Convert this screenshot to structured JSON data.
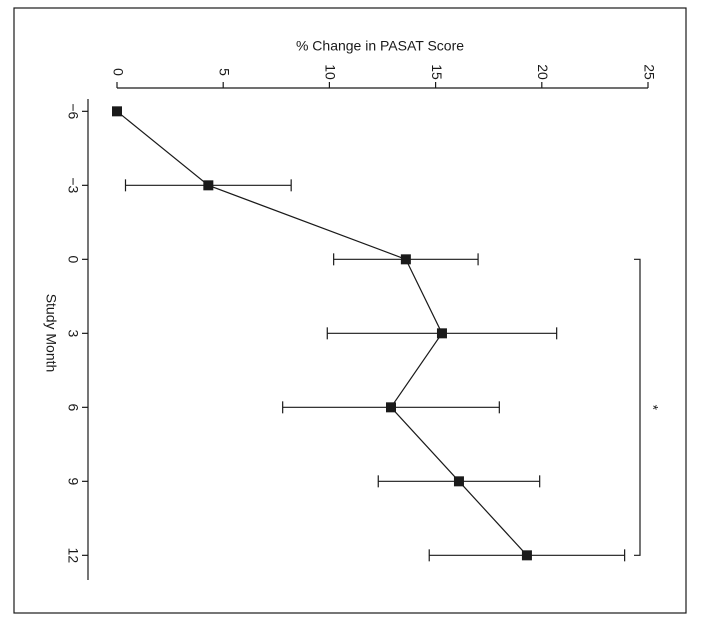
{
  "chart_data": {
    "type": "line",
    "ylabel": "% Change in PASAT Score",
    "xlabel": "Study Month",
    "x": [
      -6,
      -3,
      0,
      3,
      6,
      9,
      12
    ],
    "series": [
      {
        "name": "PASAT",
        "color": "#1a1a1a",
        "values": [
          0,
          4.3,
          13.6,
          15.3,
          12.9,
          16.1,
          19.3
        ],
        "errors": [
          0,
          3.9,
          3.4,
          5.4,
          5.1,
          3.8,
          4.6
        ]
      }
    ],
    "ylim": [
      0,
      25
    ],
    "yticks": [
      0,
      5,
      10,
      15,
      20,
      25
    ],
    "xlim": [
      -6.5,
      13
    ],
    "xticks": [
      {
        "value": -6,
        "label": "−6"
      },
      {
        "value": -3,
        "label": "−3"
      },
      0,
      3,
      6,
      9,
      12
    ],
    "bracket": {
      "from": 0,
      "to": 12,
      "label": "*"
    }
  }
}
